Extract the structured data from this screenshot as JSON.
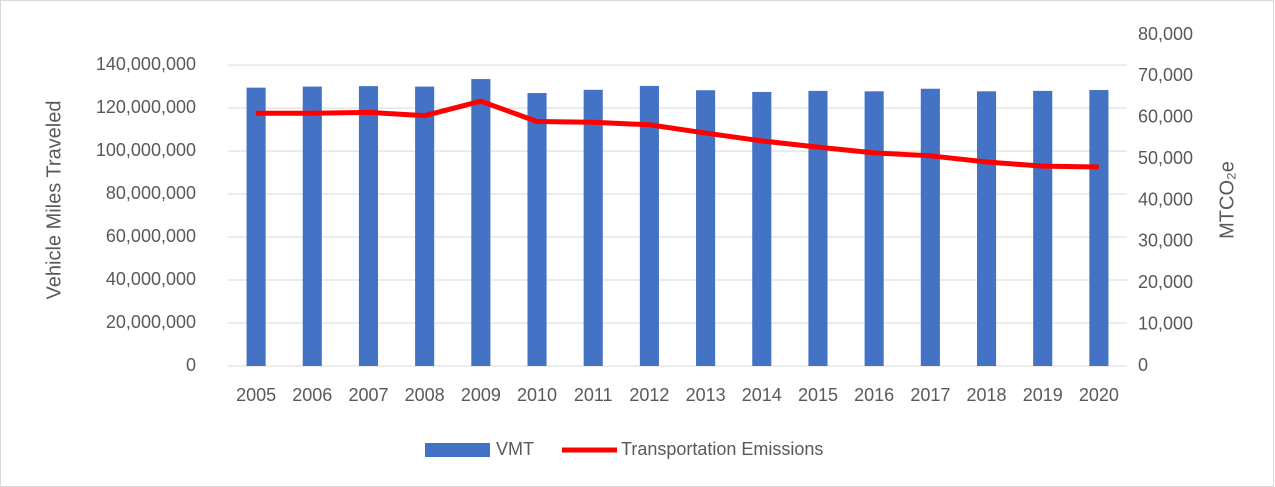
{
  "chart_data": {
    "type": "bar-line",
    "categories": [
      "2005",
      "2006",
      "2007",
      "2008",
      "2009",
      "2010",
      "2011",
      "2012",
      "2013",
      "2014",
      "2015",
      "2016",
      "2017",
      "2018",
      "2019",
      "2020"
    ],
    "ylabel": "Vehicle Miles Traveled",
    "y2label": "MTCO₂e",
    "ylim": [
      0,
      154000000
    ],
    "yticks": [
      0,
      {
        "value": 20000000,
        "label": "20,000,000"
      },
      {
        "value": 40000000,
        "label": "40,000,000"
      },
      {
        "value": 60000000,
        "label": "60,000,000"
      },
      {
        "value": 80000000,
        "label": "80,000,000"
      },
      {
        "value": 100000000,
        "label": "100,000,000"
      },
      {
        "value": 120000000,
        "label": "120,000,000"
      },
      {
        "value": 140000000,
        "label": "140,000,000"
      }
    ],
    "y2lim": [
      0,
      80000
    ],
    "y2ticks": [
      0,
      {
        "value": 10000,
        "label": "10,000"
      },
      {
        "value": 20000,
        "label": "20,000"
      },
      {
        "value": 30000,
        "label": "30,000"
      },
      {
        "value": 40000,
        "label": "40,000"
      },
      {
        "value": 50000,
        "label": "50,000"
      },
      {
        "value": 60000,
        "label": "60,000"
      },
      {
        "value": 70000,
        "label": "70,000"
      },
      {
        "value": 80000,
        "label": "80,000"
      }
    ],
    "grid": true,
    "legend": "bottom",
    "series": [
      {
        "name": "VMT",
        "type": "bar",
        "color": "#4472c4",
        "values": [
          129500000,
          130000000,
          130200000,
          130000000,
          133500000,
          127000000,
          128500000,
          130300000,
          128300000,
          127500000,
          128000000,
          127800000,
          129000000,
          127800000,
          128000000,
          128400000
        ]
      },
      {
        "name": "Transportation Emissions",
        "type": "line",
        "axis": "y2",
        "color": "#ff0000",
        "values": [
          61100,
          61100,
          61300,
          60500,
          64000,
          59100,
          58900,
          58300,
          56300,
          54400,
          52900,
          51500,
          50800,
          49300,
          48300,
          48100
        ]
      }
    ]
  }
}
